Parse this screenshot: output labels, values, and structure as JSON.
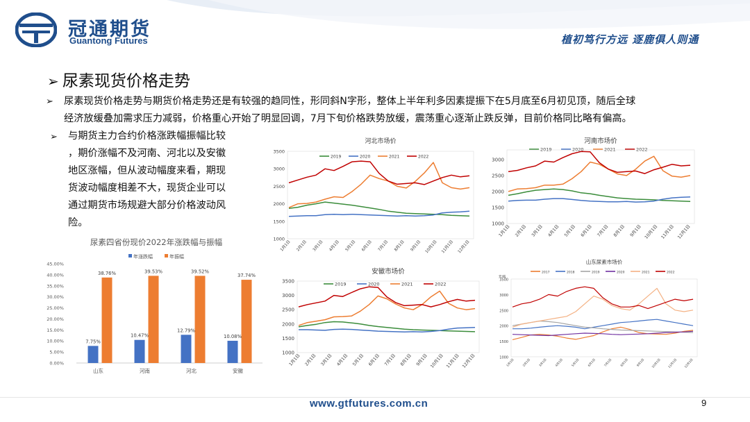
{
  "header": {
    "logo_cn": "冠通期货",
    "logo_en": "Guantong Futures",
    "slogan": "植初笃行方远 逐鹿俱人则通"
  },
  "slide": {
    "title": "尿素现货价格走势",
    "para_bullet": "➢",
    "para_line1": "尿素现货价格走势与期货价格走势还是有较强的趋同性，形同斜N字形，整体上半年利多因素提振下在5月底至6月初见顶，随后全球",
    "para_line2": "经济放缓叠加需求压力减弱，价格重心开始了明显回调，7月下旬价格跌势放缓，震荡重心逐渐止跌反弹，目前价格同比略有偏高。",
    "side_lines": [
      "与期货主力合约价格涨跌幅振幅比较",
      "，期价涨幅不及河南、河北以及安徽",
      "地区涨幅，但从波动幅度来看，期现",
      "货波动幅度相差不大，现货企业可以",
      "通过期货市场规避大部分价格波动风",
      "险。"
    ]
  },
  "footer": {
    "url": "www.gtfutures.com.cn",
    "page": "9"
  },
  "colors": {
    "brand": "#1f4e8c",
    "blue": "#4472c4",
    "orange": "#ed7d31",
    "green": "#3a8c3a",
    "red": "#c00000",
    "purple": "#7030a0",
    "gray": "#a5a5a5"
  },
  "chart_data": [
    {
      "type": "bar",
      "title": "尿素四省份现价2022年涨跌幅与振幅",
      "categories": [
        "山东",
        "河南",
        "河北",
        "安徽"
      ],
      "series": [
        {
          "name": "年涨跌幅",
          "values": [
            7.75,
            10.47,
            12.79,
            10.08
          ],
          "labels": [
            "7.75%",
            "10.47%",
            "12.79%",
            "10.08%"
          ],
          "color": "#4472c4"
        },
        {
          "name": "年振幅",
          "values": [
            38.76,
            39.53,
            39.52,
            37.74
          ],
          "labels": [
            "38.76%",
            "39.53%",
            "39.52%",
            "37.74%"
          ],
          "color": "#ed7d31"
        }
      ],
      "yticks": [
        "0.00%",
        "5.00%",
        "10.00%",
        "15.00%",
        "20.00%",
        "25.00%",
        "30.00%",
        "35.00%",
        "40.00%",
        "45.00%"
      ],
      "ylim": [
        0,
        45
      ],
      "legend": "top"
    },
    {
      "type": "line",
      "title": "河北市场价",
      "ylim": [
        1000,
        3500
      ],
      "yticks": [
        "1000",
        "1500",
        "2000",
        "2500",
        "3000",
        "3500"
      ],
      "xticks": [
        "1月1日",
        "2月1日",
        "3月1日",
        "4月1日",
        "5月1日",
        "6月1日",
        "7月1日",
        "8月1日",
        "9月1日",
        "10月1日",
        "11月1日",
        "12月1日"
      ],
      "legend": "top",
      "series": [
        {
          "name": "2019",
          "color": "#3a8c3a",
          "values": [
            1870,
            1900,
            1960,
            2000,
            2050,
            2020,
            1990,
            1960,
            1920,
            1880,
            1840,
            1790,
            1760,
            1730,
            1720,
            1710,
            1700,
            1690,
            1670,
            1660,
            1650
          ]
        },
        {
          "name": "2020",
          "color": "#4472c4",
          "values": [
            1640,
            1650,
            1660,
            1660,
            1690,
            1700,
            1690,
            1700,
            1690,
            1680,
            1670,
            1660,
            1650,
            1660,
            1650,
            1660,
            1680,
            1740,
            1760,
            1770,
            1790
          ]
        },
        {
          "name": "2021",
          "color": "#ed7d31",
          "values": [
            1890,
            2000,
            2010,
            2050,
            2130,
            2200,
            2180,
            2350,
            2560,
            2820,
            2720,
            2650,
            2500,
            2450,
            2640,
            2880,
            3180,
            2600,
            2460,
            2420,
            2460
          ]
        },
        {
          "name": "2022",
          "color": "#c00000",
          "values": [
            2600,
            2680,
            2760,
            2820,
            3000,
            2950,
            3070,
            3200,
            3220,
            3200,
            2870,
            2650,
            2560,
            2580,
            2600,
            2550,
            2650,
            2750,
            2820,
            2770,
            2800
          ]
        }
      ]
    },
    {
      "type": "line",
      "title": "河南市场价",
      "ylim": [
        1000,
        3300
      ],
      "yticks": [
        "1000",
        "1500",
        "2000",
        "2500",
        "3000"
      ],
      "xticks": [
        "1月1日",
        "2月1日",
        "3月1日",
        "4月1日",
        "5月1日",
        "6月1日",
        "7月1日",
        "8月1日",
        "9月1日",
        "10月1日",
        "11月1日",
        "12月1日"
      ],
      "legend": "top",
      "series": [
        {
          "name": "2019",
          "color": "#3a8c3a",
          "values": [
            1880,
            1930,
            1990,
            2040,
            2060,
            2080,
            2060,
            2020,
            1960,
            1930,
            1880,
            1840,
            1800,
            1780,
            1760,
            1750,
            1740,
            1720,
            1710,
            1700,
            1690
          ]
        },
        {
          "name": "2020",
          "color": "#4472c4",
          "values": [
            1700,
            1720,
            1730,
            1730,
            1760,
            1780,
            1780,
            1750,
            1720,
            1700,
            1690,
            1680,
            1680,
            1690,
            1670,
            1680,
            1700,
            1760,
            1800,
            1820,
            1830
          ]
        },
        {
          "name": "2021",
          "color": "#ed7d31",
          "values": [
            2000,
            2080,
            2090,
            2120,
            2200,
            2200,
            2230,
            2400,
            2620,
            2920,
            2850,
            2700,
            2550,
            2500,
            2700,
            2950,
            3100,
            2650,
            2480,
            2450,
            2500
          ]
        },
        {
          "name": "2022",
          "color": "#c00000",
          "values": [
            2620,
            2660,
            2740,
            2800,
            2950,
            2920,
            3060,
            3180,
            3250,
            3240,
            2900,
            2700,
            2600,
            2620,
            2640,
            2560,
            2680,
            2760,
            2850,
            2800,
            2820
          ]
        }
      ]
    },
    {
      "type": "line",
      "title": "安徽市场价",
      "ylim": [
        1000,
        3500
      ],
      "yticks": [
        "1000",
        "1500",
        "2000",
        "2500",
        "3000",
        "3500"
      ],
      "xticks": [
        "1月1日",
        "2月1日",
        "3月1日",
        "4月1日",
        "5月1日",
        "6月1日",
        "7月1日",
        "8月1日",
        "9月1日",
        "10月1日",
        "11月1日",
        "12月1日"
      ],
      "legend": "top",
      "series": [
        {
          "name": "2019",
          "color": "#3a8c3a",
          "values": [
            1900,
            1950,
            1990,
            2050,
            2080,
            2070,
            2040,
            2000,
            1950,
            1910,
            1880,
            1850,
            1820,
            1800,
            1790,
            1780,
            1770,
            1760,
            1750,
            1740,
            1730
          ]
        },
        {
          "name": "2020",
          "color": "#4472c4",
          "values": [
            1800,
            1800,
            1790,
            1780,
            1810,
            1820,
            1810,
            1790,
            1770,
            1750,
            1740,
            1730,
            1720,
            1730,
            1720,
            1740,
            1770,
            1820,
            1860,
            1870,
            1880
          ]
        },
        {
          "name": "2021",
          "color": "#ed7d31",
          "values": [
            1950,
            2050,
            2100,
            2150,
            2250,
            2260,
            2280,
            2450,
            2680,
            2980,
            2880,
            2700,
            2560,
            2500,
            2680,
            2950,
            3150,
            2720,
            2560,
            2500,
            2540
          ]
        },
        {
          "name": "2022",
          "color": "#c00000",
          "values": [
            2600,
            2680,
            2740,
            2800,
            3000,
            2960,
            3100,
            3230,
            3300,
            3280,
            2950,
            2750,
            2640,
            2660,
            2680,
            2600,
            2680,
            2780,
            2860,
            2800,
            2830
          ]
        }
      ]
    },
    {
      "type": "line",
      "title": "山东尿素市场价",
      "ylabel": "元/吨",
      "ylim": [
        1000,
        3500
      ],
      "yticks": [
        "1000",
        "1500",
        "2000",
        "2500",
        "3000",
        "3500"
      ],
      "xticks": [
        "1月1日",
        "2月1日",
        "3月1日",
        "4月1日",
        "5月1日",
        "6月1日",
        "7月1日",
        "8月1日",
        "9月1日",
        "10月1日",
        "11月1日",
        "12月1日"
      ],
      "legend": "top",
      "series": [
        {
          "name": "2017",
          "color": "#ed7d31",
          "values": [
            1550,
            1620,
            1700,
            1720,
            1700,
            1660,
            1600,
            1560,
            1620,
            1680,
            1800,
            1900,
            1950,
            1880,
            1780,
            1740,
            1730,
            1720,
            1760,
            1820,
            1850
          ]
        },
        {
          "name": "2018",
          "color": "#4472c4",
          "values": [
            1900,
            1900,
            1920,
            1950,
            1980,
            2000,
            1980,
            1950,
            1900,
            1950,
            2000,
            2050,
            2100,
            2120,
            2150,
            2180,
            2200,
            2150,
            2100,
            2050,
            2000
          ]
        },
        {
          "name": "2019",
          "color": "#a5a5a5",
          "values": [
            2000,
            2050,
            2100,
            2150,
            2130,
            2100,
            2050,
            2000,
            1950,
            1930,
            1900,
            1880,
            1860,
            1850,
            1840,
            1830,
            1820,
            1810,
            1800,
            1790,
            1780
          ]
        },
        {
          "name": "2020",
          "color": "#7030a0",
          "values": [
            1720,
            1710,
            1700,
            1690,
            1680,
            1700,
            1720,
            1740,
            1760,
            1750,
            1740,
            1720,
            1710,
            1720,
            1730,
            1740,
            1760,
            1780,
            1790,
            1800,
            1820
          ]
        },
        {
          "name": "2021",
          "color": "#f4b183",
          "values": [
            1950,
            2050,
            2100,
            2150,
            2200,
            2250,
            2300,
            2450,
            2700,
            2950,
            2850,
            2650,
            2550,
            2500,
            2700,
            2950,
            3200,
            2700,
            2500,
            2450,
            2500
          ]
        },
        {
          "name": "2022",
          "color": "#c00000",
          "values": [
            2600,
            2700,
            2750,
            2850,
            3000,
            2950,
            3100,
            3200,
            3250,
            3200,
            2900,
            2700,
            2600,
            2600,
            2650,
            2550,
            2650,
            2750,
            2850,
            2800,
            2850
          ]
        }
      ]
    }
  ]
}
